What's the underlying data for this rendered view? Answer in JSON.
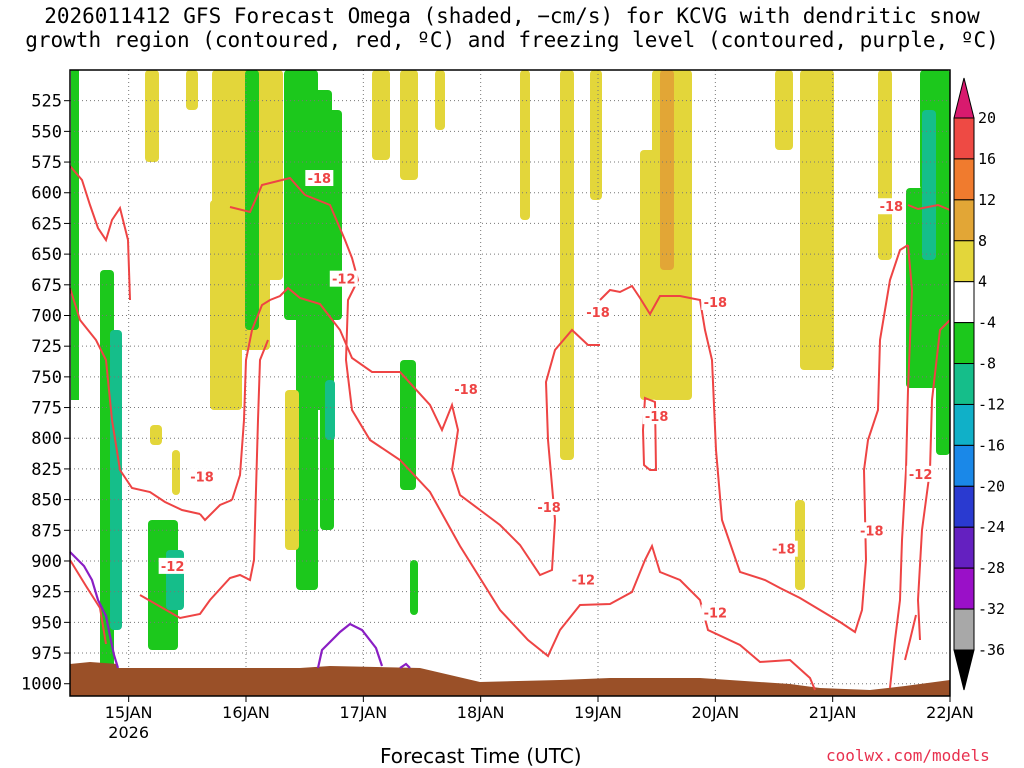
{
  "title": "2026011412 GFS Forecast Omega (shaded, −cm/s) for KCVG with dendritic snow\ngrowth region (contoured, red, ºC) and freezing level (contoured, purple, ºC)",
  "xlabel": "Forecast Time (UTC)",
  "credit": "coolwx.com/models",
  "chart_data": {
    "type": "heatmap",
    "x_ticks": [
      "15JAN",
      "16JAN",
      "17JAN",
      "18JAN",
      "19JAN",
      "20JAN",
      "21JAN",
      "22JAN"
    ],
    "x_sub_label": "2026",
    "x_range": [
      "2026-01-14T12",
      "2026-01-22T00"
    ],
    "y_ticks": [
      525,
      550,
      575,
      600,
      625,
      650,
      675,
      700,
      725,
      750,
      775,
      800,
      825,
      850,
      875,
      900,
      925,
      950,
      975,
      1000
    ],
    "y_range_hpa": [
      500,
      1010
    ],
    "y_axis_inverted": true,
    "grid": "dotted",
    "colorbar": {
      "labels": [
        "20",
        "16",
        "12",
        "8",
        "4",
        "-4",
        "-8",
        "-12",
        "-16",
        "-20",
        "-24",
        "-28",
        "-32",
        "-36"
      ],
      "colors": [
        "#d81a6e",
        "#ee4a44",
        "#f07b2e",
        "#e2a636",
        "#e3d63a",
        "#ffffff",
        "#1cc81c",
        "#15be8a",
        "#10b0c8",
        "#1a88e8",
        "#2a3ad0",
        "#6420c0",
        "#9a10c8",
        "#a8a8a8",
        "#000000"
      ]
    },
    "contour_labels": [
      {
        "text": "-18",
        "time": "2026-01-16T15",
        "p": 588
      },
      {
        "text": "-12",
        "time": "2026-01-16T20",
        "p": 670
      },
      {
        "text": "-18",
        "time": "2026-01-15T15",
        "p": 831
      },
      {
        "text": "-12",
        "time": "2026-01-15T09",
        "p": 904
      },
      {
        "text": "-18",
        "time": "2026-01-17T21",
        "p": 760
      },
      {
        "text": "-18",
        "time": "2026-01-18T14",
        "p": 856
      },
      {
        "text": "-12",
        "time": "2026-01-18T21",
        "p": 915
      },
      {
        "text": "-18",
        "time": "2026-01-19T00",
        "p": 697
      },
      {
        "text": "-18",
        "time": "2026-01-19T12",
        "p": 782
      },
      {
        "text": "-18",
        "time": "2026-01-20T00",
        "p": 689
      },
      {
        "text": "-12",
        "time": "2026-01-20T00",
        "p": 942
      },
      {
        "text": "-18",
        "time": "2026-01-20T14",
        "p": 890
      },
      {
        "text": "-18",
        "time": "2026-01-21T12",
        "p": 611
      },
      {
        "text": "-18",
        "time": "2026-01-21T08",
        "p": 875
      },
      {
        "text": "-12",
        "time": "2026-01-21T18",
        "p": 829
      }
    ],
    "series": [
      {
        "name": "dendritic snow growth region (contoured, red, ºC)",
        "color": "#ee4444"
      },
      {
        "name": "freezing level (contoured, purple, ºC)",
        "color": "#8a1ec4"
      }
    ],
    "terrain_color": "#9a5028"
  }
}
